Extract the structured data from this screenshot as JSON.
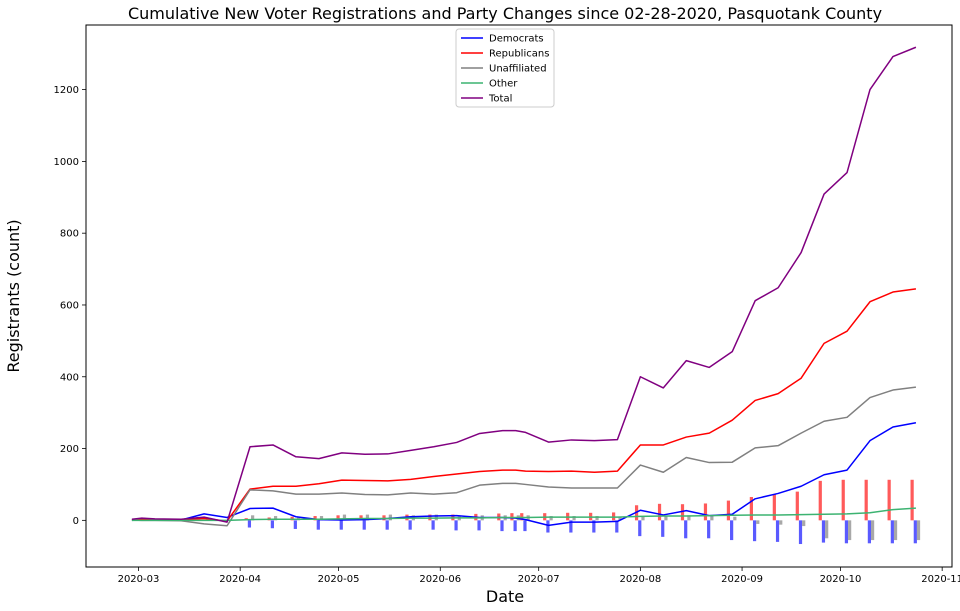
{
  "chart_data": {
    "type": "line",
    "title": "Cumulative New Voter Registrations and Party Changes since 02-28-2020, Pasquotank County",
    "xlabel": "Date",
    "ylabel": "Registrants (count)",
    "xlim": [
      "2020-02-14",
      "2020-11-04"
    ],
    "ylim": [
      -130,
      1380
    ],
    "xticks": [
      {
        "date": "2020-03-01",
        "label": "2020-03"
      },
      {
        "date": "2020-04-01",
        "label": "2020-04"
      },
      {
        "date": "2020-05-01",
        "label": "2020-05"
      },
      {
        "date": "2020-06-01",
        "label": "2020-06"
      },
      {
        "date": "2020-07-01",
        "label": "2020-07"
      },
      {
        "date": "2020-08-01",
        "label": "2020-08"
      },
      {
        "date": "2020-09-01",
        "label": "2020-09"
      },
      {
        "date": "2020-10-01",
        "label": "2020-10"
      },
      {
        "date": "2020-11-01",
        "label": "2020-11"
      }
    ],
    "yticks": [
      0,
      200,
      400,
      600,
      800,
      1000,
      1200
    ],
    "grid": false,
    "legend_position": "top-center",
    "dates": [
      "2020-02-28",
      "2020-03-02",
      "2020-03-06",
      "2020-03-14",
      "2020-03-21",
      "2020-03-28",
      "2020-04-04",
      "2020-04-11",
      "2020-04-18",
      "2020-04-25",
      "2020-05-02",
      "2020-05-09",
      "2020-05-16",
      "2020-05-23",
      "2020-05-30",
      "2020-06-06",
      "2020-06-13",
      "2020-06-20",
      "2020-06-24",
      "2020-06-27",
      "2020-07-04",
      "2020-07-11",
      "2020-07-18",
      "2020-07-25",
      "2020-08-01",
      "2020-08-08",
      "2020-08-15",
      "2020-08-22",
      "2020-08-29",
      "2020-09-05",
      "2020-09-12",
      "2020-09-19",
      "2020-09-26",
      "2020-10-03",
      "2020-10-10",
      "2020-10-17",
      "2020-10-24"
    ],
    "series": [
      {
        "name": "Democrats",
        "color": "#0000ff",
        "values": [
          0,
          5,
          3,
          1,
          18,
          8,
          33,
          34,
          10,
          2,
          1,
          2,
          5,
          10,
          12,
          13,
          8,
          8,
          6,
          2,
          -14,
          -5,
          -5,
          -3,
          28,
          15,
          27,
          13,
          17,
          60,
          75,
          95,
          127,
          140,
          222,
          260,
          272
        ]
      },
      {
        "name": "Republicans",
        "color": "#ff0000",
        "values": [
          2,
          3,
          2,
          2,
          5,
          -2,
          87,
          95,
          95,
          102,
          112,
          111,
          110,
          114,
          122,
          129,
          136,
          140,
          140,
          137,
          136,
          137,
          134,
          137,
          210,
          210,
          232,
          243,
          279,
          334,
          353,
          396,
          493,
          527,
          609,
          636,
          645
        ]
      },
      {
        "name": "Unaffiliated",
        "color": "#808080",
        "values": [
          1,
          0,
          0,
          -1,
          -10,
          -15,
          85,
          82,
          73,
          73,
          76,
          72,
          71,
          76,
          73,
          77,
          98,
          103,
          103,
          100,
          93,
          90,
          90,
          90,
          154,
          134,
          175,
          161,
          162,
          202,
          208,
          243,
          276,
          287,
          342,
          363,
          371
        ]
      },
      {
        "name": "Other",
        "color": "#3cb371",
        "values": [
          0,
          0,
          0,
          0,
          0,
          0,
          2,
          3,
          3,
          3,
          4,
          5,
          5,
          6,
          6,
          7,
          7,
          8,
          8,
          8,
          9,
          9,
          9,
          9,
          11,
          12,
          12,
          13,
          14,
          15,
          15,
          16,
          17,
          18,
          21,
          30,
          34
        ]
      },
      {
        "name": "Total",
        "color": "#800080",
        "values": [
          3,
          6,
          4,
          3,
          9,
          -5,
          205,
          210,
          177,
          172,
          188,
          184,
          185,
          195,
          205,
          217,
          242,
          250,
          250,
          245,
          218,
          224,
          222,
          225,
          400,
          369,
          445,
          426,
          470,
          612,
          648,
          746,
          909,
          969,
          1200,
          1292,
          1318
        ]
      }
    ],
    "bars": {
      "dates": [
        "2020-04-04",
        "2020-04-11",
        "2020-04-18",
        "2020-04-25",
        "2020-05-02",
        "2020-05-09",
        "2020-05-16",
        "2020-05-23",
        "2020-05-30",
        "2020-06-06",
        "2020-06-13",
        "2020-06-20",
        "2020-06-24",
        "2020-06-27",
        "2020-07-04",
        "2020-07-11",
        "2020-07-18",
        "2020-07-25",
        "2020-08-01",
        "2020-08-08",
        "2020-08-15",
        "2020-08-22",
        "2020-08-29",
        "2020-09-05",
        "2020-09-12",
        "2020-09-19",
        "2020-09-26",
        "2020-10-03",
        "2020-10-10",
        "2020-10-17",
        "2020-10-24"
      ],
      "series": [
        {
          "color": "#ff5a5a",
          "values": [
            6,
            8,
            10,
            12,
            14,
            14,
            14,
            16,
            16,
            16,
            18,
            19,
            20,
            20,
            20,
            21,
            21,
            22,
            42,
            46,
            45,
            47,
            55,
            65,
            72,
            80,
            110,
            113,
            113,
            113,
            113
          ]
        },
        {
          "color": "#5a5aff",
          "values": [
            -20,
            -22,
            -24,
            -26,
            -26,
            -26,
            -26,
            -26,
            -26,
            -28,
            -28,
            -30,
            -30,
            -30,
            -34,
            -34,
            -34,
            -34,
            -44,
            -46,
            -50,
            -50,
            -55,
            -58,
            -60,
            -66,
            -62,
            -64,
            -64,
            -64,
            -64
          ]
        },
        {
          "color": "#a8a8a8",
          "values": [
            14,
            12,
            10,
            12,
            16,
            16,
            16,
            14,
            16,
            12,
            14,
            14,
            14,
            14,
            12,
            12,
            12,
            10,
            12,
            12,
            14,
            12,
            10,
            -10,
            -12,
            -16,
            -50,
            -55,
            -55,
            -55,
            -55
          ]
        }
      ]
    }
  }
}
